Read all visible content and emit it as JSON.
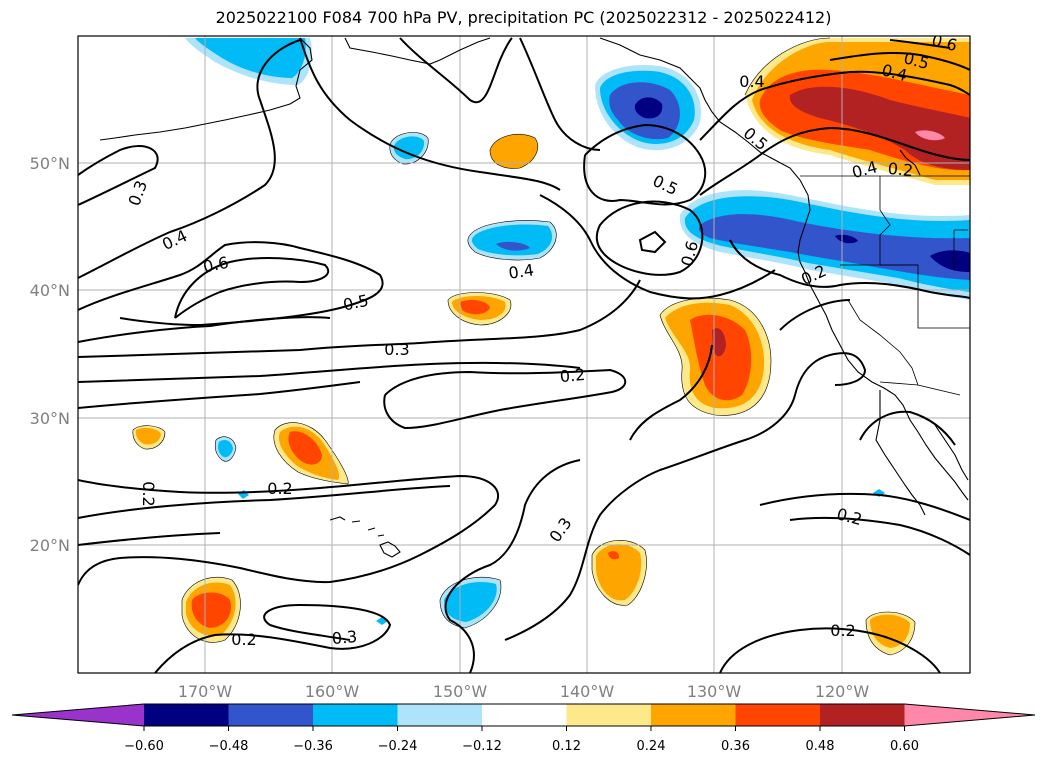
{
  "title": "2025022100 F084 700 hPa PV, precipitation PC (2025022312 - 2025022412)",
  "latitude_labels": [
    "50°N",
    "40°N",
    "30°N",
    "20°N"
  ],
  "longitude_labels": [
    "170°W",
    "160°W",
    "150°W",
    "140°W",
    "130°W",
    "120°W"
  ],
  "contour_labels": [
    "0.3",
    "0.4",
    "0.6",
    "0.5",
    "0.3",
    "0.2",
    "0.5",
    "0.4",
    "0.6",
    "0.4",
    "0.5",
    "0.4",
    "0.2",
    "0.2",
    "0.2",
    "0.3",
    "0.2",
    "0.2",
    "0.2",
    "0.3",
    "0.2",
    "0.4",
    "0.5",
    "0.6"
  ],
  "colorbar": {
    "tick_labels": [
      "−0.60",
      "−0.48",
      "−0.36",
      "−0.24",
      "−0.12",
      "0.12",
      "0.24",
      "0.36",
      "0.48",
      "0.60"
    ],
    "colors": {
      "lt_neg060": "#9933cc",
      "neg060_neg048": "#000080",
      "neg048_neg036": "#3355cc",
      "neg036_neg024": "#00bbf5",
      "neg024_neg012": "#aee4fb",
      "neg012_012": "#ffffff",
      "pos012_024": "#fde88a",
      "pos024_036": "#fea500",
      "pos036_048": "#ff4500",
      "pos048_060": "#b22222",
      "gt_060": "#ff88aa"
    }
  }
}
